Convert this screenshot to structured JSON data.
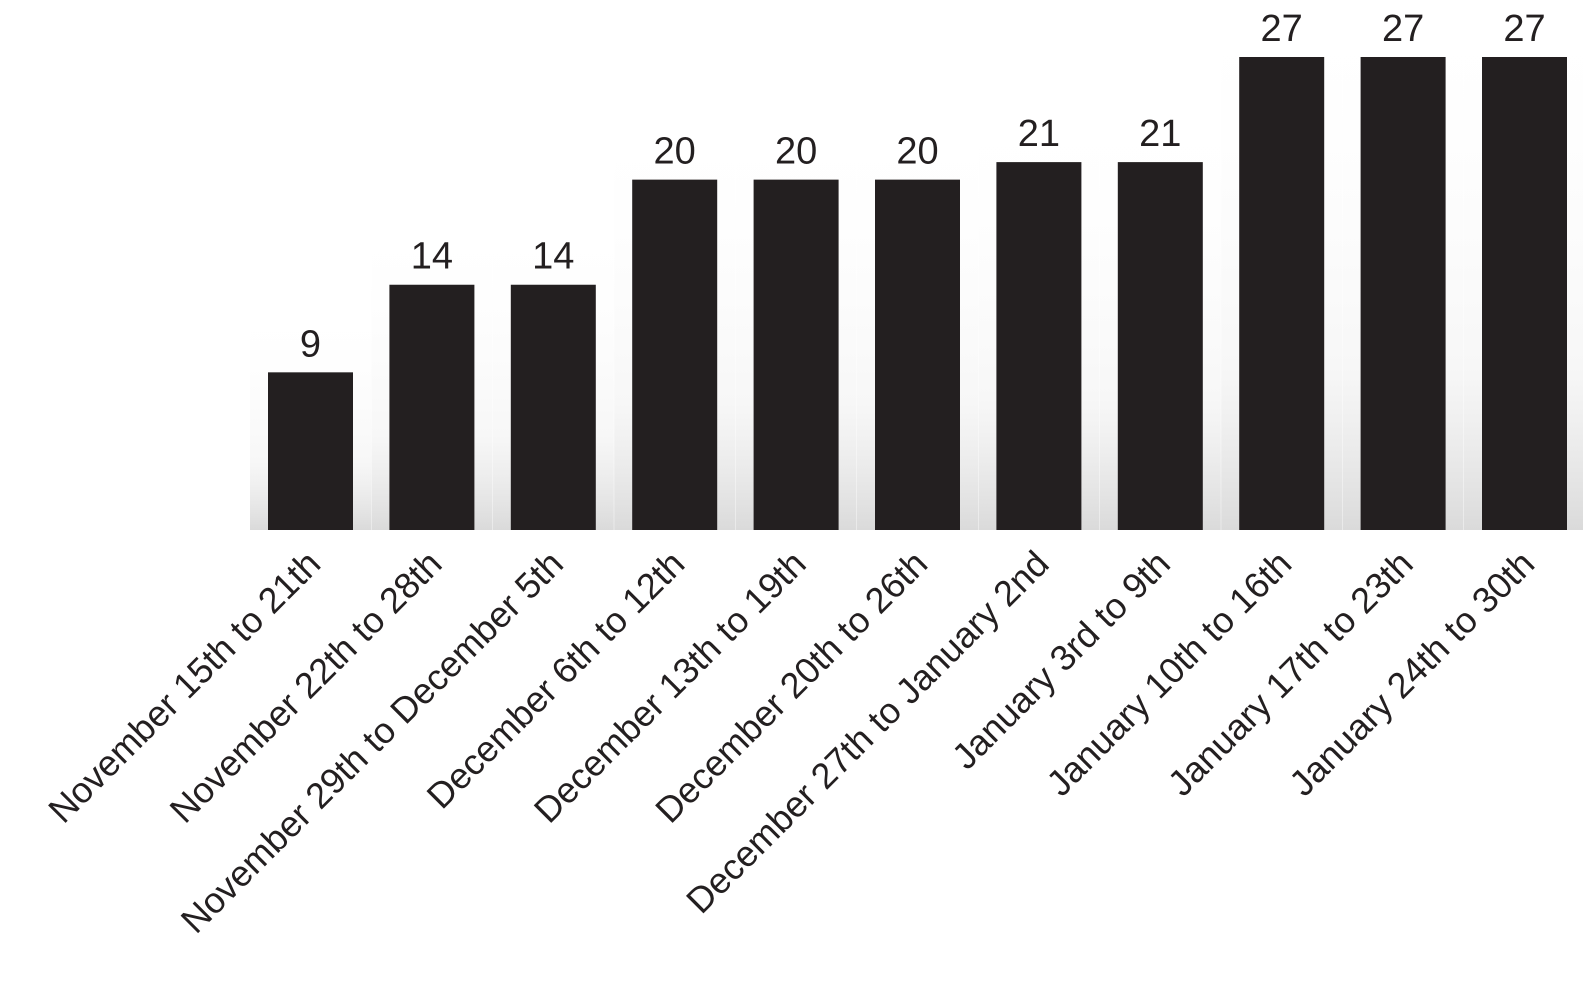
{
  "chart_data": {
    "type": "bar",
    "categories": [
      "November 15th to 21th",
      "November 22th to 28th",
      "November 29th to December 5th",
      "December 6th to 12th",
      "December 13th to 19th",
      "December 20th to 26th",
      "December 27th to January 2nd",
      "January 3rd to 9th",
      "January 10th to 16th",
      "January 17th to 23th",
      "January 24th to 30th"
    ],
    "values": [
      9,
      14,
      14,
      20,
      20,
      20,
      21,
      21,
      27,
      27,
      27
    ],
    "data_labels": [
      "9",
      "14",
      "14",
      "20",
      "20",
      "20",
      "21",
      "21",
      "27",
      "27",
      "27"
    ],
    "title": "",
    "xlabel": "",
    "ylabel": "",
    "ylim": [
      0,
      27
    ],
    "grid": false,
    "legend": "none",
    "colors": {
      "bar": "#231f20",
      "text": "#231f20",
      "shadow": "#d9d9d9",
      "background": "#ffffff"
    }
  }
}
